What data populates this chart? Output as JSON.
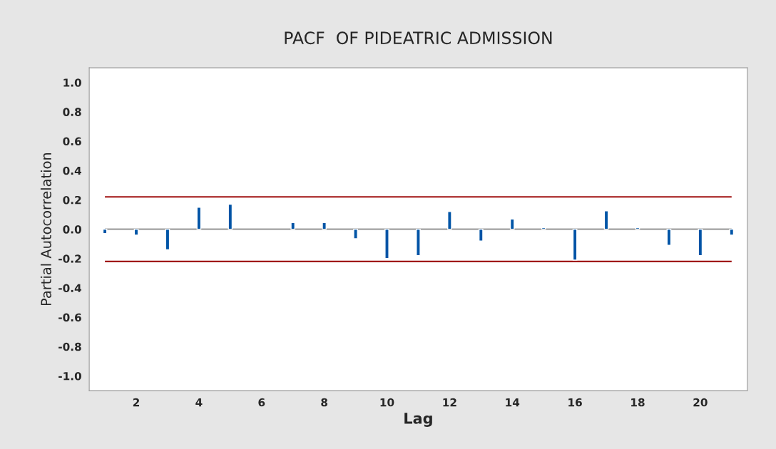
{
  "chart_data": {
    "type": "bar",
    "title": "PACF  OF PIDEATRIC ADMISSION",
    "xlabel": "Lag",
    "ylabel": "Partial Autocorrelation",
    "x": [
      1,
      2,
      3,
      4,
      5,
      6,
      7,
      8,
      9,
      10,
      11,
      12,
      13,
      14,
      15,
      16,
      17,
      18,
      19,
      20,
      21
    ],
    "values": [
      -0.03,
      -0.04,
      -0.14,
      0.15,
      0.17,
      null,
      0.045,
      0.045,
      -0.065,
      -0.2,
      -0.18,
      0.12,
      -0.08,
      0.07,
      0.01,
      -0.21,
      0.125,
      0.01,
      -0.11,
      -0.18,
      -0.04
    ],
    "color": "#0054a6",
    "xlim": [
      0.5,
      21.5
    ],
    "xticks": [
      2,
      4,
      6,
      8,
      10,
      12,
      14,
      16,
      18,
      20
    ],
    "ylim": [
      -1.1,
      1.1
    ],
    "yticks": [
      {
        "value": -1.0,
        "label": "-1.0"
      },
      {
        "value": -0.8,
        "label": "-0.8"
      },
      {
        "value": -0.6,
        "label": "-0.6"
      },
      {
        "value": -0.4,
        "label": "-0.4"
      },
      {
        "value": -0.2,
        "label": "-0.2"
      },
      {
        "value": 0,
        "label": "0.0"
      },
      {
        "value": 0.2,
        "label": "0.2"
      },
      {
        "value": 0.4,
        "label": "0.4"
      },
      {
        "value": 0.6,
        "label": "0.6"
      },
      {
        "value": 0.8,
        "label": "0.8"
      },
      {
        "value": 1.0,
        "label": "1.0"
      }
    ],
    "ref_lines": [
      {
        "axis": "y",
        "value": 0,
        "color": "#a0a0a0"
      },
      {
        "axis": "y",
        "value": 0.22,
        "color": "#a01010"
      },
      {
        "axis": "y",
        "value": -0.22,
        "color": "#a01010"
      }
    ],
    "grid": false,
    "legend": false
  }
}
